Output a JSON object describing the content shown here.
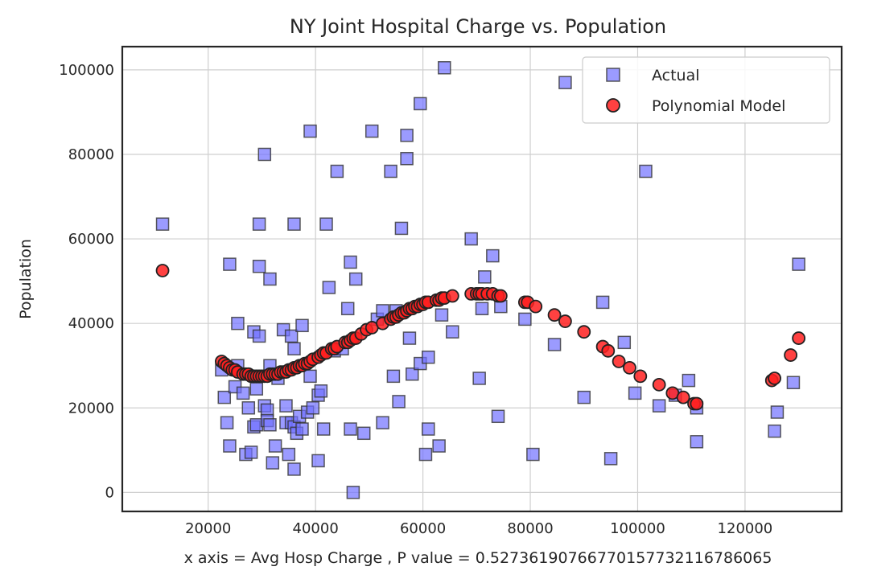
{
  "chart_data": {
    "type": "scatter",
    "title": "NY Joint Hospital Charge vs. Population",
    "xlabel": "x axis = Avg Hosp Charge , P value = 0.5273619076677015773211678606​5",
    "ylabel": "Population",
    "xlim": [
      4000,
      138000
    ],
    "ylim": [
      -4500,
      105500
    ],
    "xticks": [
      20000,
      40000,
      60000,
      80000,
      100000,
      120000
    ],
    "yticks": [
      0,
      20000,
      40000,
      60000,
      80000,
      100000
    ],
    "grid": true,
    "legend_position": "top-right",
    "series": [
      {
        "name": "Actual",
        "marker": "square",
        "color": "#7070ff",
        "points": [
          [
            11500,
            63500
          ],
          [
            22500,
            29000
          ],
          [
            23000,
            22500
          ],
          [
            23500,
            16500
          ],
          [
            24000,
            11000
          ],
          [
            24000,
            54000
          ],
          [
            25000,
            25000
          ],
          [
            25500,
            40000
          ],
          [
            25500,
            30000
          ],
          [
            26500,
            23500
          ],
          [
            27000,
            9000
          ],
          [
            27500,
            20000
          ],
          [
            28000,
            9500
          ],
          [
            28500,
            38000
          ],
          [
            28500,
            15500
          ],
          [
            29000,
            24500
          ],
          [
            29000,
            16000
          ],
          [
            29500,
            63500
          ],
          [
            29500,
            37000
          ],
          [
            29500,
            53500
          ],
          [
            30500,
            80000
          ],
          [
            30500,
            20500
          ],
          [
            31000,
            19500
          ],
          [
            31000,
            17000
          ],
          [
            31500,
            16000
          ],
          [
            31500,
            50500
          ],
          [
            31500,
            30000
          ],
          [
            32000,
            7000
          ],
          [
            32500,
            11000
          ],
          [
            33000,
            27000
          ],
          [
            34000,
            38500
          ],
          [
            34500,
            20500
          ],
          [
            34500,
            16500
          ],
          [
            35000,
            9000
          ],
          [
            35500,
            16500
          ],
          [
            35500,
            37000
          ],
          [
            36000,
            34000
          ],
          [
            36000,
            15500
          ],
          [
            36000,
            63500
          ],
          [
            36000,
            5500
          ],
          [
            36500,
            14000
          ],
          [
            37000,
            18000
          ],
          [
            37500,
            39500
          ],
          [
            37500,
            15000
          ],
          [
            38500,
            19000
          ],
          [
            39000,
            27500
          ],
          [
            39000,
            85500
          ],
          [
            39500,
            20000
          ],
          [
            40500,
            7500
          ],
          [
            40500,
            23000
          ],
          [
            41000,
            24000
          ],
          [
            41500,
            15000
          ],
          [
            42000,
            63500
          ],
          [
            42500,
            48500
          ],
          [
            43500,
            33500
          ],
          [
            44000,
            76000
          ],
          [
            45000,
            34000
          ],
          [
            46000,
            43500
          ],
          [
            46500,
            54500
          ],
          [
            46500,
            15000
          ],
          [
            47000,
            0
          ],
          [
            47500,
            50500
          ],
          [
            49000,
            14000
          ],
          [
            50500,
            85500
          ],
          [
            51500,
            41000
          ],
          [
            52500,
            43000
          ],
          [
            52500,
            16500
          ],
          [
            54000,
            76000
          ],
          [
            54500,
            27500
          ],
          [
            55000,
            43000
          ],
          [
            55500,
            21500
          ],
          [
            56000,
            62500
          ],
          [
            57000,
            84500
          ],
          [
            57000,
            79000
          ],
          [
            57500,
            36500
          ],
          [
            58000,
            28000
          ],
          [
            59500,
            92000
          ],
          [
            59500,
            30500
          ],
          [
            60500,
            9000
          ],
          [
            61000,
            32000
          ],
          [
            61000,
            15000
          ],
          [
            63000,
            11000
          ],
          [
            63500,
            42000
          ],
          [
            64000,
            100500
          ],
          [
            65500,
            38000
          ],
          [
            69000,
            60000
          ],
          [
            70500,
            27000
          ],
          [
            71000,
            43500
          ],
          [
            71500,
            51000
          ],
          [
            73000,
            56000
          ],
          [
            74000,
            18000
          ],
          [
            74500,
            44000
          ],
          [
            79000,
            41000
          ],
          [
            80500,
            9000
          ],
          [
            84500,
            35000
          ],
          [
            86500,
            97000
          ],
          [
            90000,
            22500
          ],
          [
            93500,
            45000
          ],
          [
            95000,
            8000
          ],
          [
            97500,
            35500
          ],
          [
            99500,
            23500
          ],
          [
            101500,
            76000
          ],
          [
            104000,
            20500
          ],
          [
            107000,
            23000
          ],
          [
            109500,
            26500
          ],
          [
            111000,
            12000
          ],
          [
            111000,
            20000
          ],
          [
            125500,
            14500
          ],
          [
            126000,
            19000
          ],
          [
            129000,
            26000
          ],
          [
            130000,
            54000
          ]
        ]
      },
      {
        "name": "Polynomial Model",
        "marker": "circle",
        "color": "#ff2020",
        "points": [
          [
            11500,
            52500
          ],
          [
            22500,
            31000
          ],
          [
            23000,
            30500
          ],
          [
            23500,
            30000
          ],
          [
            24000,
            29500
          ],
          [
            24500,
            29000
          ],
          [
            25000,
            29000
          ],
          [
            25500,
            28500
          ],
          [
            26500,
            28000
          ],
          [
            27000,
            28000
          ],
          [
            27500,
            28000
          ],
          [
            28000,
            27500
          ],
          [
            28500,
            27500
          ],
          [
            29000,
            27500
          ],
          [
            29500,
            27500
          ],
          [
            30000,
            27500
          ],
          [
            30500,
            27500
          ],
          [
            31000,
            27500
          ],
          [
            31500,
            28000
          ],
          [
            32000,
            28000
          ],
          [
            32500,
            28000
          ],
          [
            33000,
            28000
          ],
          [
            33500,
            28500
          ],
          [
            34000,
            28500
          ],
          [
            34500,
            28500
          ],
          [
            35000,
            29000
          ],
          [
            35500,
            29000
          ],
          [
            36000,
            29500
          ],
          [
            36500,
            29500
          ],
          [
            37000,
            30000
          ],
          [
            37500,
            30000
          ],
          [
            38000,
            30500
          ],
          [
            38500,
            30500
          ],
          [
            39000,
            31000
          ],
          [
            39500,
            31500
          ],
          [
            40500,
            32000
          ],
          [
            41000,
            32500
          ],
          [
            41500,
            33000
          ],
          [
            42000,
            33000
          ],
          [
            43000,
            34000
          ],
          [
            43500,
            34000
          ],
          [
            44000,
            34500
          ],
          [
            45500,
            35500
          ],
          [
            46000,
            35500
          ],
          [
            46500,
            36000
          ],
          [
            47000,
            36500
          ],
          [
            47500,
            36500
          ],
          [
            48500,
            37500
          ],
          [
            49500,
            38500
          ],
          [
            50500,
            39000
          ],
          [
            52500,
            40000
          ],
          [
            54000,
            41000
          ],
          [
            54500,
            41500
          ],
          [
            55000,
            41500
          ],
          [
            55500,
            42000
          ],
          [
            56000,
            42500
          ],
          [
            56500,
            42500
          ],
          [
            57000,
            43000
          ],
          [
            57500,
            43500
          ],
          [
            58000,
            43500
          ],
          [
            58500,
            44000
          ],
          [
            59000,
            44000
          ],
          [
            59500,
            44500
          ],
          [
            60000,
            44500
          ],
          [
            60500,
            45000
          ],
          [
            61000,
            45000
          ],
          [
            62500,
            45500
          ],
          [
            63000,
            45500
          ],
          [
            63500,
            46000
          ],
          [
            64000,
            46000
          ],
          [
            65500,
            46500
          ],
          [
            69000,
            47000
          ],
          [
            70000,
            47000
          ],
          [
            70500,
            47000
          ],
          [
            71000,
            47000
          ],
          [
            72000,
            47000
          ],
          [
            73000,
            47000
          ],
          [
            74000,
            46500
          ],
          [
            74500,
            46500
          ],
          [
            79000,
            45000
          ],
          [
            79500,
            45000
          ],
          [
            81000,
            44000
          ],
          [
            84500,
            42000
          ],
          [
            86500,
            40500
          ],
          [
            90000,
            38000
          ],
          [
            93500,
            34500
          ],
          [
            94500,
            33500
          ],
          [
            96500,
            31000
          ],
          [
            98500,
            29500
          ],
          [
            100500,
            27500
          ],
          [
            104000,
            25500
          ],
          [
            106500,
            23500
          ],
          [
            108500,
            22500
          ],
          [
            110500,
            21000
          ],
          [
            111000,
            21000
          ],
          [
            125000,
            26500
          ],
          [
            125500,
            27000
          ],
          [
            128500,
            32500
          ],
          [
            130000,
            36500
          ]
        ]
      }
    ]
  }
}
